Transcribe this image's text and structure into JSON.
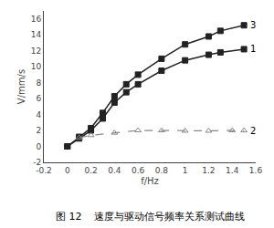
{
  "chart_data": {
    "type": "line",
    "xlabel": "f/Hz",
    "ylabel": "V/mm/s",
    "caption": "图 12    速度与驱动信号频率关系测试曲线",
    "xlim": [
      -0.2,
      1.6
    ],
    "ylim": [
      -2,
      17
    ],
    "xticks": [
      -0.2,
      0,
      0.2,
      0.4,
      0.6,
      0.8,
      1,
      1.2,
      1.4,
      1.6
    ],
    "yticks": [
      -2,
      0,
      2,
      4,
      6,
      8,
      10,
      12,
      14,
      16
    ],
    "grid": false,
    "series": [
      {
        "name": "3",
        "color": "#222222",
        "marker": "square",
        "line_style": "solid",
        "x": [
          0.0,
          0.1,
          0.2,
          0.3,
          0.4,
          0.5,
          0.6,
          0.8,
          1.0,
          1.2,
          1.3,
          1.5
        ],
        "values": [
          0.0,
          1.2,
          2.3,
          4.2,
          6.3,
          7.8,
          9.0,
          11.0,
          12.8,
          13.8,
          14.5,
          15.2
        ]
      },
      {
        "name": "1",
        "color": "#222222",
        "marker": "square",
        "line_style": "solid",
        "x": [
          0.0,
          0.1,
          0.2,
          0.3,
          0.4,
          0.5,
          0.6,
          0.8,
          1.0,
          1.2,
          1.3,
          1.5
        ],
        "values": [
          0.0,
          1.0,
          2.0,
          3.5,
          5.5,
          6.8,
          7.8,
          9.5,
          10.8,
          11.5,
          11.8,
          12.2
        ]
      },
      {
        "name": "2",
        "color": "#888888",
        "marker": "triangle-up-open",
        "line_style": "dash",
        "x": [
          0.1,
          0.2,
          0.4,
          0.6,
          0.8,
          1.0,
          1.2,
          1.4,
          1.5
        ],
        "values": [
          1.1,
          1.4,
          1.7,
          2.0,
          2.0,
          1.95,
          1.95,
          2.0,
          2.0
        ]
      }
    ]
  }
}
